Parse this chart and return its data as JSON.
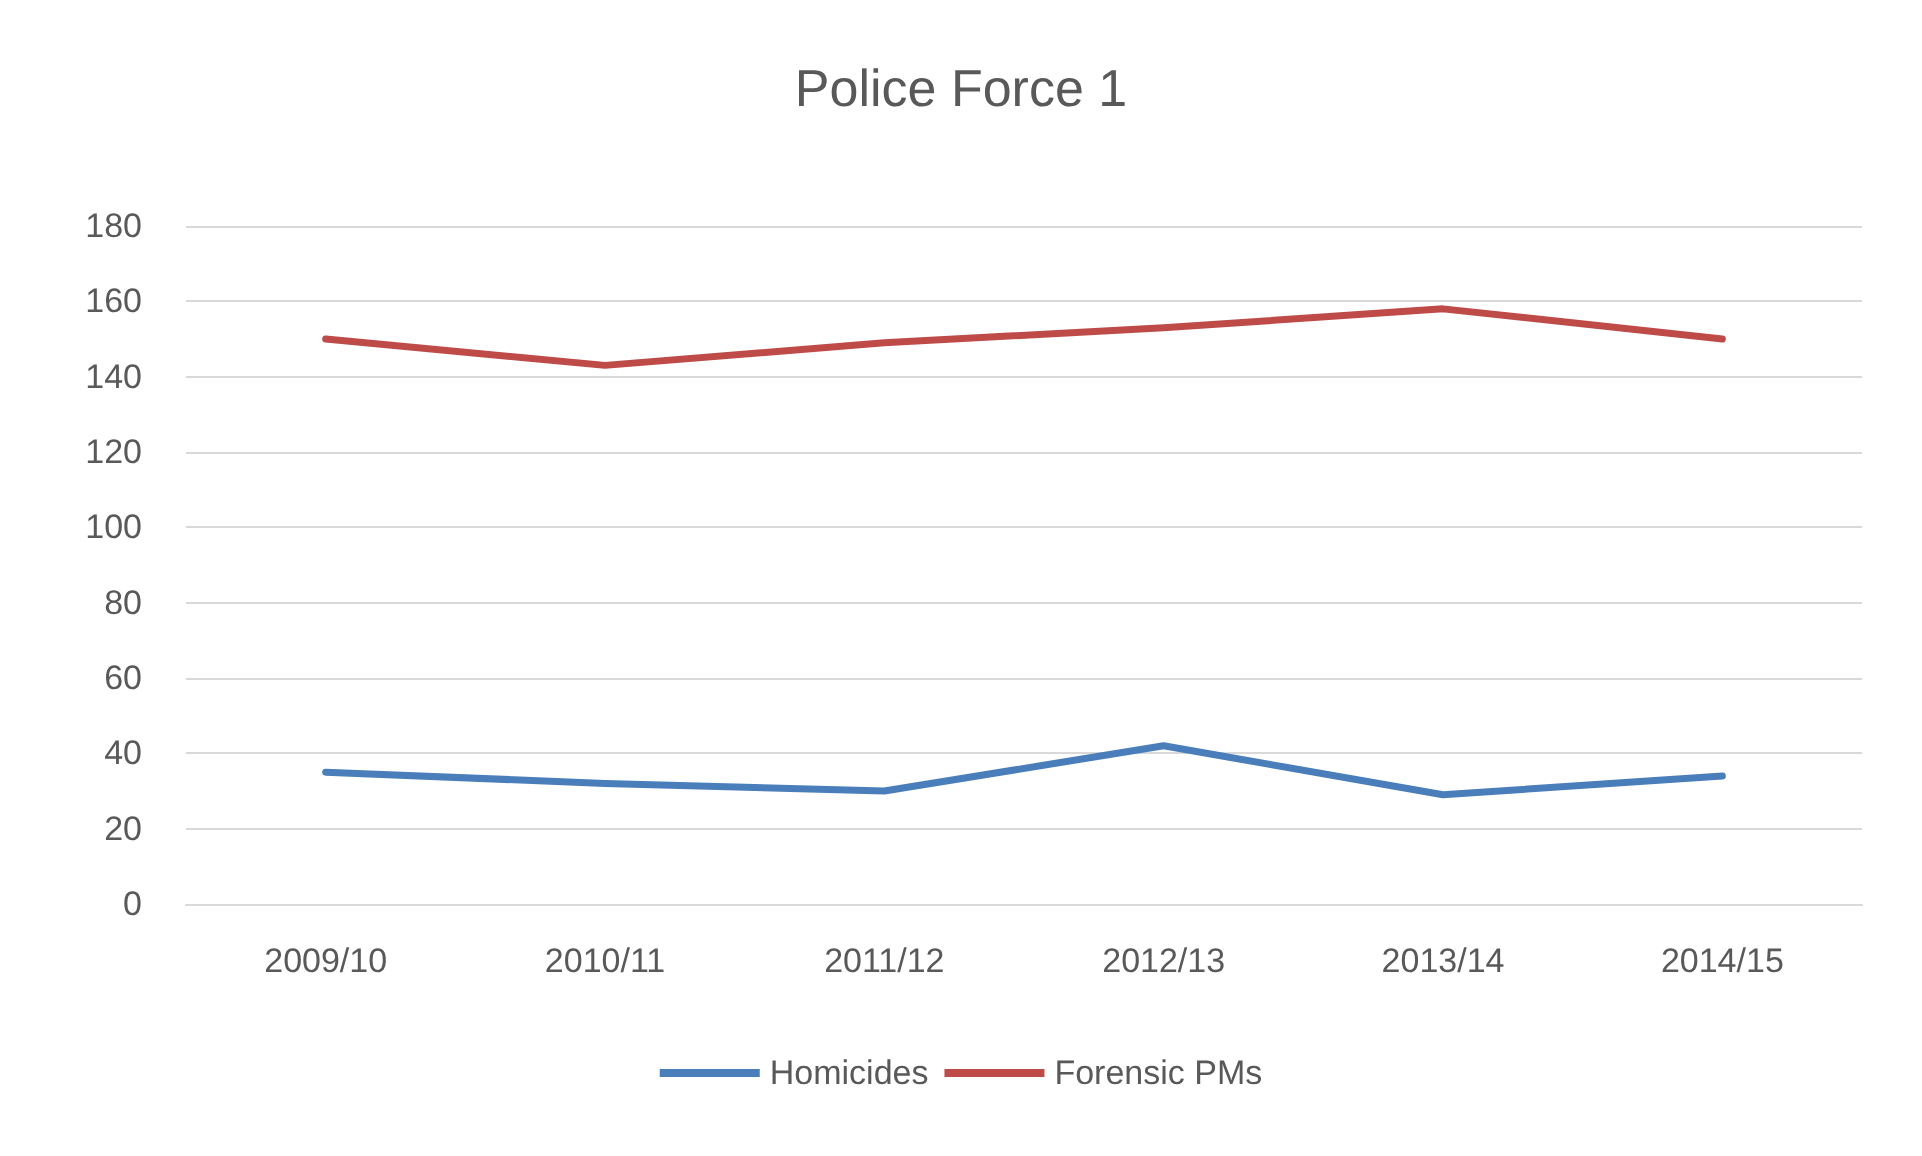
{
  "chart_data": {
    "type": "line",
    "title": "Police Force 1",
    "categories": [
      "2009/10",
      "2010/11",
      "2011/12",
      "2012/13",
      "2013/14",
      "2014/15"
    ],
    "series": [
      {
        "name": "Homicides",
        "color": "#4a7ebb",
        "values": [
          35,
          32,
          30,
          42,
          29,
          34
        ]
      },
      {
        "name": "Forensic PMs",
        "color": "#be4b48",
        "values": [
          150,
          143,
          149,
          153,
          158,
          150
        ]
      }
    ],
    "ylim": [
      0,
      180
    ],
    "yticks": [
      0,
      20,
      40,
      60,
      80,
      100,
      120,
      140,
      160,
      180
    ],
    "grid": "y",
    "legend": "bottom",
    "marker": "none",
    "line_style": "solid"
  }
}
